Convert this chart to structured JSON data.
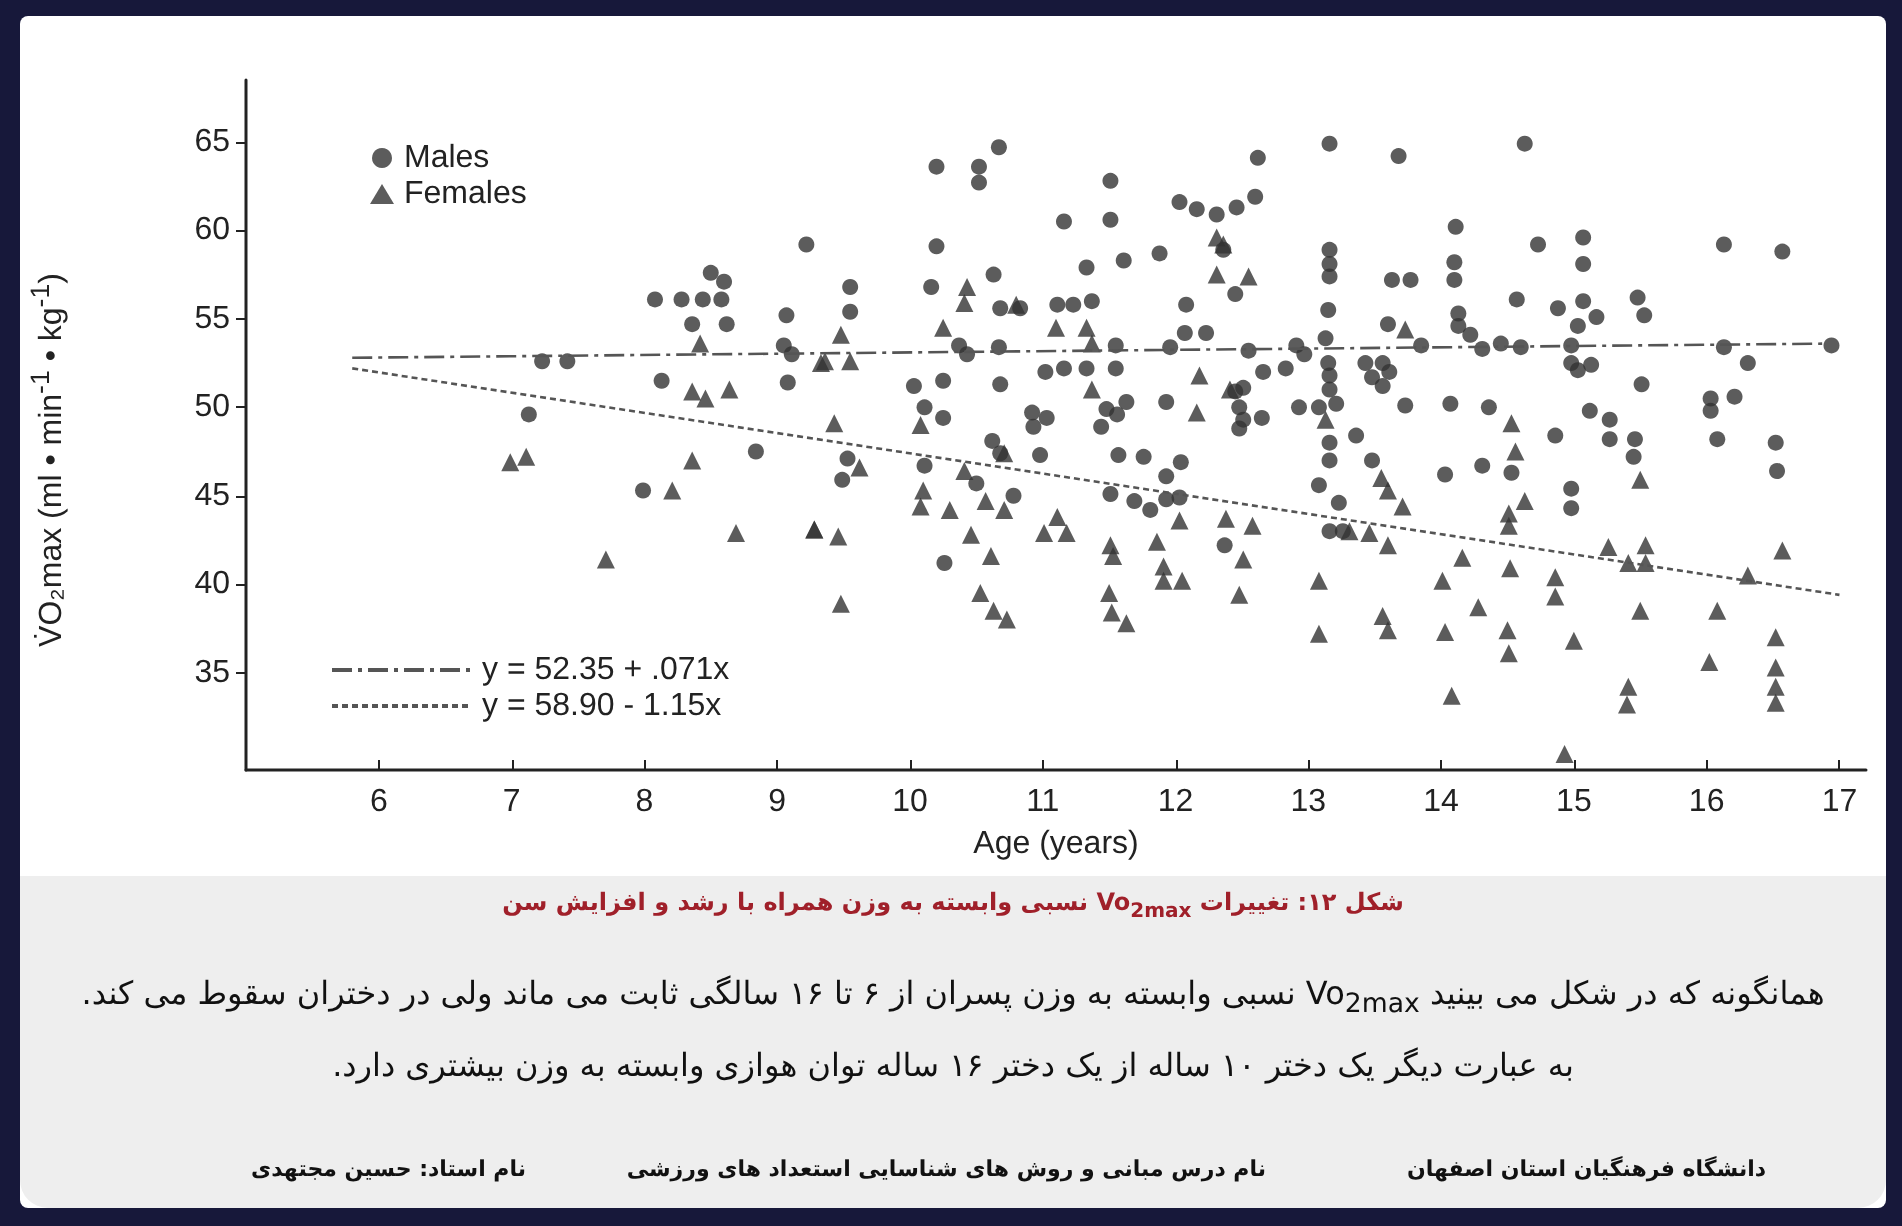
{
  "chart_data": {
    "type": "scatter",
    "xlabel": "Age (years)",
    "ylabel": "V̇O₂max (ml • min$^{-1}$ • kg$^{-1}$)",
    "xlim": [
      5,
      17.2
    ],
    "ylim": [
      29.5,
      68.5
    ],
    "xticks": [
      6,
      7,
      8,
      9,
      10,
      11,
      12,
      13,
      14,
      15,
      16,
      17
    ],
    "yticks": [
      35,
      40,
      45,
      50,
      55,
      60,
      65
    ],
    "grid": false,
    "legend": "left",
    "series": [
      {
        "name": "Males",
        "marker": "circle",
        "color": "#333333",
        "x": [
          7.13,
          7.23,
          7.42,
          8.08,
          8.28,
          8.44,
          8.58,
          8.5,
          8.6,
          8.36,
          8.62,
          8.13,
          8.84,
          7.99,
          9.22,
          9.07,
          9.05,
          9.11,
          9.08,
          9.55,
          9.55,
          9.53,
          9.49,
          10.2,
          10.52,
          10.52,
          10.67,
          10.2,
          10.16,
          10.63,
          10.68,
          10.83,
          10.37,
          10.43,
          10.67,
          10.03,
          10.25,
          10.68,
          10.11,
          10.25,
          10.62,
          10.68,
          10.11,
          10.5,
          10.78,
          10.26,
          11.16,
          11.33,
          11.51,
          11.51,
          11.61,
          11.11,
          11.23,
          11.37,
          11.02,
          11.16,
          11.33,
          11.55,
          11.55,
          10.92,
          11.03,
          10.93,
          10.98,
          11.48,
          11.63,
          11.56,
          11.44,
          11.57,
          11.76,
          11.51,
          11.69,
          11.81,
          11.93,
          12.03,
          11.93,
          12.04,
          11.88,
          11.93,
          11.96,
          12.08,
          12.07,
          12.23,
          12.03,
          12.16,
          12.31,
          12.46,
          12.6,
          12.36,
          12.45,
          12.62,
          12.55,
          12.66,
          12.83,
          12.91,
          12.97,
          12.45,
          12.51,
          12.48,
          12.51,
          12.48,
          12.65,
          12.93,
          13.08,
          13.21,
          12.37,
          13.16,
          13.16,
          13.16,
          13.16,
          13.15,
          13.13,
          13.15,
          13.16,
          13.16,
          13.16,
          13.16,
          13.08,
          13.23,
          13.16,
          13.26,
          13.36,
          13.68,
          14.63,
          13.63,
          13.77,
          13.6,
          13.85,
          13.43,
          13.56,
          13.61,
          13.48,
          13.56,
          13.73,
          14.11,
          14.1,
          14.1,
          14.13,
          14.13,
          14.22,
          14.31,
          14.45,
          14.6,
          14.07,
          14.36,
          14.03,
          14.31,
          14.53,
          14.57,
          14.73,
          15.07,
          15.07,
          14.88,
          15.07,
          15.17,
          15.03,
          14.98,
          14.98,
          15.03,
          15.13,
          14.86,
          15.12,
          14.98,
          14.98,
          15.27,
          15.27,
          15.46,
          15.45,
          15.48,
          15.53,
          15.51,
          16.13,
          16.13,
          16.31,
          16.03,
          16.03,
          16.21,
          16.08,
          16.57,
          16.52,
          16.53,
          16.94,
          13.48
        ],
        "values": [
          49.6,
          52.6,
          52.6,
          56.1,
          56.1,
          56.1,
          56.1,
          57.6,
          57.1,
          54.7,
          54.7,
          51.5,
          47.5,
          45.3,
          59.2,
          55.2,
          53.5,
          53.0,
          51.4,
          56.8,
          55.4,
          47.1,
          45.9,
          63.6,
          63.6,
          62.7,
          64.7,
          59.1,
          56.8,
          57.5,
          55.6,
          55.6,
          53.5,
          53.0,
          53.4,
          51.2,
          51.5,
          51.3,
          50.0,
          49.4,
          48.1,
          47.4,
          46.7,
          45.7,
          45.0,
          41.2,
          60.5,
          57.9,
          62.8,
          60.6,
          58.3,
          55.8,
          55.8,
          56.0,
          52.0,
          52.2,
          52.2,
          53.5,
          52.2,
          49.7,
          49.4,
          48.9,
          47.3,
          49.9,
          50.3,
          49.6,
          48.9,
          47.3,
          47.2,
          45.1,
          44.7,
          44.2,
          44.8,
          44.9,
          46.1,
          46.9,
          58.7,
          50.3,
          53.4,
          55.8,
          54.2,
          54.2,
          61.6,
          61.2,
          60.9,
          61.3,
          61.9,
          58.9,
          56.4,
          64.1,
          53.2,
          52.0,
          52.2,
          53.5,
          53.0,
          50.9,
          51.1,
          50.0,
          49.3,
          48.8,
          49.4,
          50.0,
          50.0,
          50.2,
          42.2,
          64.9,
          58.9,
          58.1,
          57.4,
          55.5,
          53.9,
          52.5,
          51.8,
          51.0,
          48.0,
          47.0,
          45.6,
          44.6,
          43.0,
          43.0,
          48.4,
          64.2,
          64.9,
          57.2,
          57.2,
          54.7,
          53.5,
          52.5,
          52.5,
          52.0,
          51.7,
          51.2,
          50.1,
          60.2,
          58.2,
          57.2,
          55.3,
          54.6,
          54.1,
          53.3,
          53.6,
          53.4,
          50.2,
          50.0,
          46.2,
          46.7,
          46.3,
          56.1,
          59.2,
          59.6,
          58.1,
          55.6,
          56.0,
          55.1,
          54.6,
          53.5,
          52.5,
          52.1,
          52.4,
          48.4,
          49.8,
          45.4,
          44.3,
          49.3,
          48.2,
          48.2,
          47.2,
          56.2,
          55.2,
          51.3,
          59.2,
          53.4,
          52.5,
          50.5,
          49.8,
          50.6,
          48.2,
          58.8,
          48.0,
          46.4,
          53.5,
          47.0
        ]
      },
      {
        "name": "Females",
        "marker": "triangle",
        "color": "#333333",
        "x": [
          6.99,
          7.11,
          7.71,
          8.21,
          8.36,
          8.42,
          8.36,
          8.46,
          8.64,
          8.69,
          9.28,
          9.33,
          9.48,
          9.36,
          9.55,
          9.43,
          9.62,
          9.28,
          9.46,
          9.48,
          10.25,
          10.43,
          10.41,
          10.08,
          10.1,
          10.08,
          10.3,
          10.41,
          10.57,
          10.71,
          10.46,
          10.61,
          10.53,
          10.63,
          10.73,
          10.71,
          10.8,
          11.1,
          11.33,
          11.37,
          11.37,
          11.11,
          11.01,
          11.18,
          11.51,
          11.53,
          11.5,
          11.52,
          11.63,
          11.86,
          11.91,
          11.91,
          12.05,
          12.03,
          12.18,
          12.16,
          12.31,
          12.36,
          12.31,
          12.55,
          12.41,
          12.38,
          12.58,
          12.51,
          12.48,
          13.13,
          13.08,
          13.08,
          13.31,
          13.73,
          13.55,
          13.6,
          13.71,
          13.46,
          13.6,
          13.56,
          13.6,
          14.16,
          14.01,
          14.28,
          14.03,
          14.08,
          14.53,
          14.56,
          14.63,
          14.51,
          14.51,
          14.52,
          14.5,
          14.51,
          14.86,
          14.86,
          15.0,
          14.93,
          15.26,
          15.41,
          15.54,
          15.54,
          15.5,
          15.41,
          15.4,
          15.5,
          16.31,
          16.08,
          16.02,
          16.57,
          16.52,
          16.52,
          16.52,
          16.52
        ],
        "values": [
          46.9,
          47.2,
          41.4,
          45.3,
          47.0,
          53.6,
          50.9,
          50.5,
          51.0,
          42.9,
          43.1,
          52.5,
          54.1,
          52.6,
          52.6,
          49.1,
          46.6,
          43.1,
          42.7,
          38.9,
          54.5,
          56.8,
          55.9,
          49.0,
          45.3,
          44.4,
          44.2,
          46.4,
          44.7,
          44.2,
          42.8,
          41.6,
          39.5,
          38.5,
          38.0,
          47.4,
          55.8,
          54.5,
          54.5,
          53.6,
          51.0,
          43.8,
          42.9,
          42.9,
          42.2,
          41.6,
          39.5,
          38.4,
          37.8,
          42.4,
          41.0,
          40.2,
          40.2,
          43.6,
          51.8,
          49.7,
          59.6,
          59.2,
          57.5,
          57.4,
          51.0,
          43.7,
          43.3,
          41.4,
          39.4,
          49.3,
          40.2,
          37.2,
          43.0,
          54.4,
          46.0,
          45.3,
          44.4,
          42.9,
          42.2,
          38.2,
          37.4,
          41.5,
          40.2,
          38.7,
          37.3,
          33.7,
          49.1,
          47.5,
          44.7,
          44.0,
          43.3,
          40.9,
          37.4,
          36.1,
          40.4,
          39.3,
          36.8,
          30.4,
          42.1,
          41.2,
          41.2,
          42.2,
          38.5,
          34.2,
          33.2,
          45.9,
          40.5,
          38.5,
          35.6,
          41.9,
          37.0,
          35.3,
          34.2,
          33.3
        ]
      },
      {
        "name": "y = 52.35 + .071x",
        "type": "line",
        "line_style": "dashed",
        "color": "#555555",
        "x": [
          5.8,
          16.9
        ],
        "values": [
          52.8,
          53.6
        ]
      },
      {
        "name": "y = 58.90 - 1.15x",
        "type": "line",
        "line_style": "dotted",
        "color": "#555555",
        "x": [
          5.8,
          17.0
        ],
        "values": [
          52.2,
          39.4
        ]
      }
    ],
    "annotations": [
      "شکل ۱۲: تغییرات Vo$_{2max}$ نسبی وابسته به وزن همراه با رشد و افزایش سن",
      "همانگونه که در شکل می بینید Vo$_{2max}$ نسبی وابسته به وزن پسران از ۶ تا ۱۶ سالگی ثابت می ماند ولی در دختران سقوط می کند. به عبارت دیگر یک دختر ۱۰ ساله از یک دختر ۱۶ ساله توان هوازی وابسته به وزن بیشتری دارد.",
      "دانشگاه فرهنگیان استان اصفهان",
      "نام درس مبانی و روش های شناسایی استعداد های ورزشی",
      "نام استاد: حسین مجتهدی"
    ]
  }
}
